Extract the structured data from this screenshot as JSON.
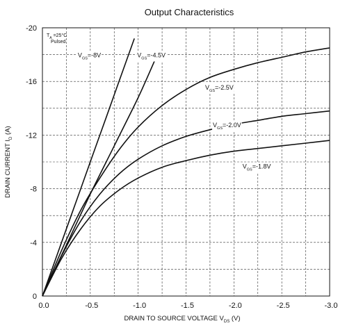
{
  "chart_data": {
    "type": "line",
    "title": "Output Characteristics",
    "xlabel": {
      "main": "DRAIN TO SOURCE VOLTAGE V",
      "sub": "DS",
      "unit": " (V)"
    },
    "ylabel": {
      "main": "DRAIN CURRENT I",
      "sub": "D",
      "unit": " (A)"
    },
    "xlim": [
      0,
      -3.0
    ],
    "ylim": [
      0,
      -20
    ],
    "x_ticks": [
      0,
      -0.5,
      -1.0,
      -1.5,
      -2.0,
      -2.5,
      -3.0
    ],
    "x_tick_labels": [
      "0.0",
      "-0.5",
      "-1.0",
      "-1.5",
      "-2.0",
      "-2.5",
      "-3.0"
    ],
    "y_ticks": [
      0,
      -4,
      -8,
      -12,
      -16,
      -20
    ],
    "y_tick_labels": [
      "0",
      "-4",
      "-8",
      "-12",
      "-16",
      "-20"
    ],
    "grid": true,
    "annotation": {
      "line1": "T =25°C",
      "line1_sub": "A",
      "line2": "Pulsed"
    },
    "series": [
      {
        "name": "V_GS=-8V",
        "label_main": "V",
        "label_sub": "GS",
        "label_value": "=-8V",
        "x": [
          0,
          -0.2,
          -0.4,
          -0.6,
          -0.8,
          -0.96
        ],
        "y": [
          0,
          -4.0,
          -8.0,
          -12.0,
          -16.0,
          -19.2
        ]
      },
      {
        "name": "V_GS=-4.5V",
        "label_main": "V",
        "label_sub": "GS",
        "label_value": "=-4.5V",
        "x": [
          0,
          -0.25,
          -0.5,
          -0.75,
          -1.0,
          -1.2
        ],
        "y": [
          0,
          -3.8,
          -7.6,
          -11.2,
          -14.8,
          -18.0
        ]
      },
      {
        "name": "V_GS=-2.5V",
        "label_main": "V",
        "label_sub": "GS",
        "label_value": "=-2.5V",
        "x": [
          0,
          -0.2,
          -0.4,
          -0.6,
          -0.8,
          -1.0,
          -1.25,
          -1.5,
          -1.75,
          -2.0,
          -2.25,
          -2.5,
          -2.75,
          -3.0
        ],
        "y": [
          0,
          -3.4,
          -6.4,
          -8.8,
          -10.9,
          -12.6,
          -14.2,
          -15.4,
          -16.3,
          -16.9,
          -17.4,
          -17.8,
          -18.2,
          -18.5
        ]
      },
      {
        "name": "V_GS=-2.0V",
        "label_main": "V",
        "label_sub": "GS",
        "label_value": "=-2.0V",
        "x": [
          0,
          -0.2,
          -0.4,
          -0.6,
          -0.8,
          -1.0,
          -1.25,
          -1.5,
          -1.75,
          -2.0,
          -2.25,
          -2.5,
          -2.75,
          -3.0
        ],
        "y": [
          0,
          -3.0,
          -5.6,
          -7.6,
          -9.1,
          -10.2,
          -11.2,
          -11.9,
          -12.4,
          -12.8,
          -13.1,
          -13.4,
          -13.6,
          -13.8
        ]
      },
      {
        "name": "V_GS=-1.8V",
        "label_main": "V",
        "label_sub": "GS",
        "label_value": "=-1.8V",
        "x": [
          0,
          -0.2,
          -0.4,
          -0.6,
          -0.8,
          -1.0,
          -1.25,
          -1.5,
          -1.75,
          -2.0,
          -2.25,
          -2.5,
          -2.75,
          -3.0
        ],
        "y": [
          0,
          -2.8,
          -5.0,
          -6.7,
          -7.9,
          -8.8,
          -9.6,
          -10.1,
          -10.5,
          -10.8,
          -11.0,
          -11.2,
          -11.4,
          -11.6
        ]
      }
    ]
  }
}
